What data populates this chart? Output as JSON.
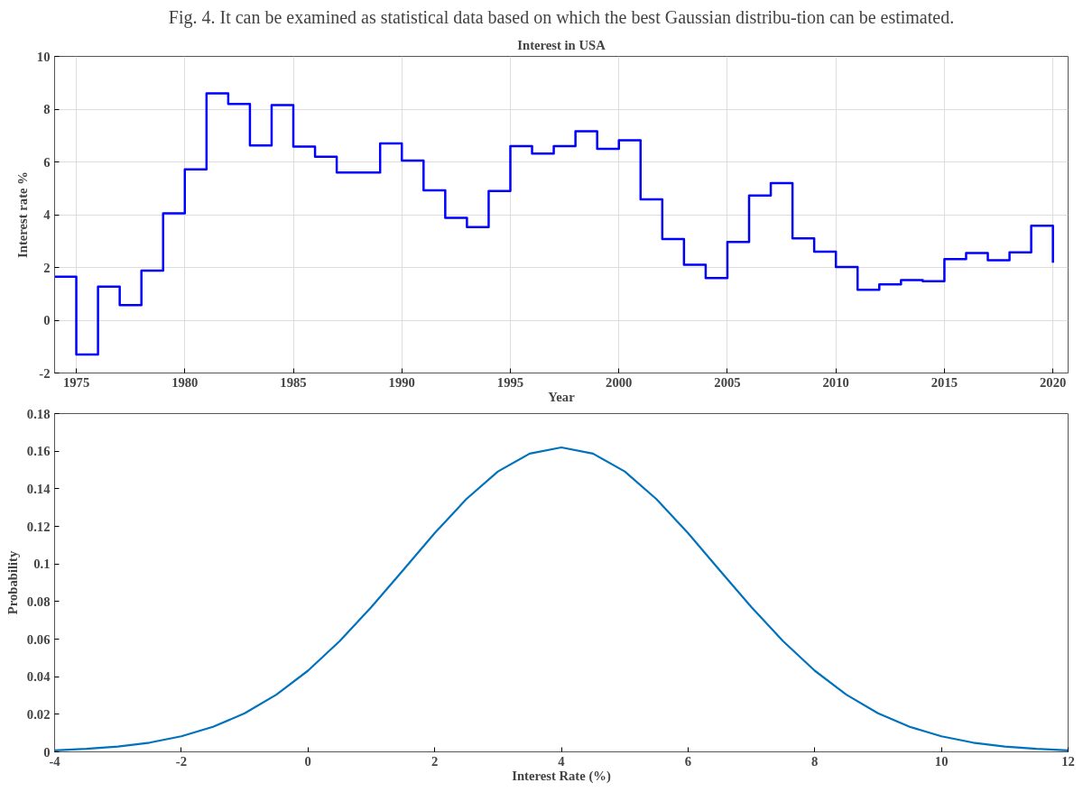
{
  "chart_data": [
    {
      "type": "step",
      "title": "Interest in USA",
      "xlabel": "Year",
      "ylabel": "Interest rate %",
      "annotations": [
        "Fig. 4. It can be examined as statistical data based on which the best Gaussian distribu-tion can be estimated."
      ],
      "x": [
        1974,
        1975,
        1976,
        1977,
        1978,
        1979,
        1980,
        1981,
        1982,
        1983,
        1984,
        1985,
        1986,
        1987,
        1988,
        1989,
        1990,
        1991,
        1992,
        1993,
        1994,
        1995,
        1996,
        1997,
        1998,
        1999,
        2000,
        2001,
        2002,
        2003,
        2004,
        2005,
        2006,
        2007,
        2008,
        2009,
        2010,
        2011,
        2012,
        2013,
        2014,
        2015,
        2016,
        2017,
        2018,
        2019,
        2020
      ],
      "series": [
        {
          "color": "#0000ff",
          "values": [
            1.65,
            -1.3,
            1.27,
            0.57,
            1.88,
            4.05,
            5.72,
            8.6,
            8.2,
            6.62,
            8.15,
            6.58,
            6.2,
            5.6,
            5.6,
            6.7,
            6.05,
            4.92,
            3.88,
            3.53,
            4.9,
            6.6,
            6.32,
            6.6,
            7.16,
            6.5,
            6.82,
            4.58,
            3.08,
            2.1,
            1.6,
            2.97,
            4.73,
            5.2,
            3.1,
            2.6,
            2.02,
            1.15,
            1.36,
            1.52,
            1.48,
            2.32,
            2.55,
            2.27,
            2.57,
            3.58,
            2.18
          ]
        }
      ],
      "xlim": [
        1974,
        2020.7
      ],
      "xticks": [
        1975,
        1980,
        1985,
        1990,
        1995,
        2000,
        2005,
        2010,
        2015,
        2020
      ],
      "ylim": [
        -2,
        10
      ],
      "yticks": [
        -2,
        0,
        2,
        4,
        6,
        8,
        10
      ],
      "grid": true
    },
    {
      "type": "line",
      "xlabel": "Interest Rate (%)",
      "ylabel": "Probability",
      "x": [
        -4,
        -3.5,
        -3,
        -2.5,
        -2,
        -1.5,
        -1,
        -0.5,
        0,
        0.5,
        1,
        1.5,
        2,
        2.5,
        3,
        3.5,
        4,
        4.5,
        5,
        5.5,
        6,
        6.5,
        7,
        7.5,
        8,
        8.5,
        9,
        9.5,
        10,
        10.5,
        11,
        11.5,
        12
      ],
      "series": [
        {
          "color": "#0072bd",
          "values": [
            0.0008,
            0.0016,
            0.0028,
            0.0049,
            0.0083,
            0.0133,
            0.0205,
            0.0304,
            0.0432,
            0.0589,
            0.077,
            0.0966,
            0.1164,
            0.1345,
            0.1492,
            0.1587,
            0.162,
            0.1587,
            0.1492,
            0.1345,
            0.1164,
            0.0966,
            0.077,
            0.0589,
            0.0432,
            0.0304,
            0.0205,
            0.0133,
            0.0083,
            0.0049,
            0.0028,
            0.0016,
            0.0008
          ]
        }
      ],
      "xlim": [
        -4,
        12
      ],
      "xticks": [
        -4,
        -2,
        0,
        2,
        4,
        6,
        8,
        10,
        12
      ],
      "ylim": [
        0,
        0.18
      ],
      "yticks": [
        0,
        0.02,
        0.04,
        0.06,
        0.08,
        0.1,
        0.12,
        0.14,
        0.16,
        0.18
      ],
      "grid": false
    }
  ]
}
